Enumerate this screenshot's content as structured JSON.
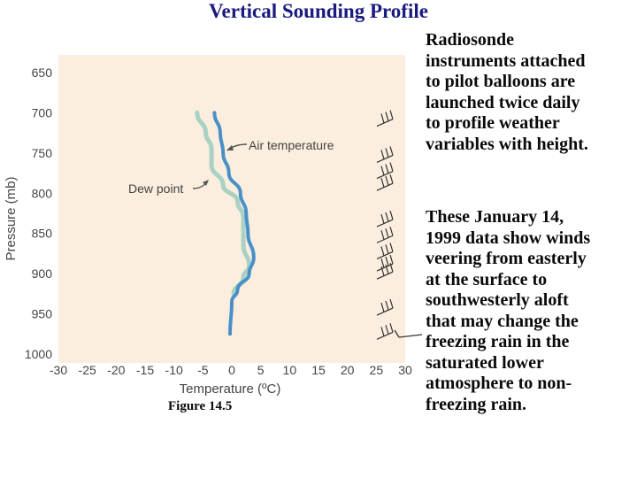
{
  "slide": {
    "title": "Vertical Sounding Profile",
    "paragraph_1": "Radiosonde\ninstruments attached\nto pilot balloons are\nlaunched twice daily\nto profile weather\nvariables with height.",
    "paragraph_2": "These January 14,\n1999 data show winds\nveering from easterly\nat the surface to\nsouthwesterly aloft\nthat may change the\nfreezing rain in the\nsaturated lower\natmosphere to non-\nfreezing rain.",
    "figure_caption": "Figure 14.5"
  },
  "chart_data": {
    "type": "line",
    "xlabel": "Temperature (ºC)",
    "ylabel": "Pressure (mb)",
    "xlim": [
      -30,
      30
    ],
    "ylim": [
      650,
      1000
    ],
    "y_inverted": true,
    "xticks": [
      -30,
      -25,
      -20,
      -15,
      -10,
      -5,
      0,
      5,
      10,
      15,
      20,
      25,
      30
    ],
    "yticks": [
      650,
      700,
      750,
      800,
      850,
      900,
      950,
      1000
    ],
    "grid": false,
    "plot_background": "#fbeede",
    "series": [
      {
        "name": "Air temperature",
        "color": "#4a90c8",
        "points": [
          {
            "t": -3.0,
            "p": 700
          },
          {
            "t": -2.0,
            "p": 725
          },
          {
            "t": -1.5,
            "p": 750
          },
          {
            "t": -0.5,
            "p": 775
          },
          {
            "t": 1.5,
            "p": 800
          },
          {
            "t": 2.5,
            "p": 825
          },
          {
            "t": 2.8,
            "p": 850
          },
          {
            "t": 3.8,
            "p": 880
          },
          {
            "t": 3.0,
            "p": 900
          },
          {
            "t": 1.0,
            "p": 920
          },
          {
            "t": 0.0,
            "p": 935
          },
          {
            "t": -0.3,
            "p": 975
          }
        ]
      },
      {
        "name": "Dew point",
        "color": "#a9d1c4",
        "points": [
          {
            "t": -6.0,
            "p": 700
          },
          {
            "t": -4.5,
            "p": 725
          },
          {
            "t": -3.5,
            "p": 745
          },
          {
            "t": -3.5,
            "p": 765
          },
          {
            "t": -1.5,
            "p": 790
          },
          {
            "t": 1.0,
            "p": 810
          },
          {
            "t": 2.0,
            "p": 830
          },
          {
            "t": 2.0,
            "p": 865
          },
          {
            "t": 3.0,
            "p": 890
          },
          {
            "t": 2.0,
            "p": 905
          },
          {
            "t": 0.3,
            "p": 925
          }
        ]
      }
    ],
    "annotations": [
      "Air temperature",
      "Dew point"
    ],
    "wind_barb_pressures": [
      710,
      755,
      775,
      790,
      835,
      855,
      875,
      890,
      900,
      945,
      975
    ],
    "source_credit_lines": [
      "",
      ""
    ]
  }
}
